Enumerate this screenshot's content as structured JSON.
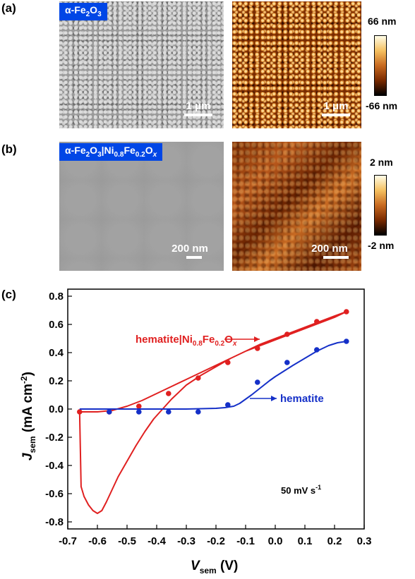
{
  "panels": {
    "a": {
      "letter": "(a)",
      "tag": {
        "base": "α-Fe",
        "sub1": "2",
        "mid": "O",
        "sub2": "3"
      },
      "sem_scale": "1 μm",
      "afm_scale": "1 μm",
      "colorbar": {
        "max": "66 nm",
        "min": "-66 nm"
      }
    },
    "b": {
      "letter": "(b)",
      "tag": {
        "p1": "α-Fe",
        "s1": "2",
        "p2": "O",
        "s2": "3",
        "p3": "|Ni",
        "s3": "0.8",
        "p4": "Fe",
        "s4": "0.2",
        "p5": "O",
        "s5": "x"
      },
      "sem_scale": "200 nm",
      "afm_scale": "200 nm",
      "colorbar": {
        "max": "2 nm",
        "min": "-2 nm"
      }
    },
    "c": {
      "letter": "(c)"
    }
  },
  "chart_data": {
    "type": "line",
    "xlabel": {
      "main": "V",
      "sub": "sem",
      "unit": " (V)"
    },
    "ylabel": {
      "main": "J",
      "sub": "sem",
      "unit": " (mA cm",
      "sup": "-2",
      "close": ")"
    },
    "xlim": [
      -0.7,
      0.3
    ],
    "ylim": [
      -0.85,
      0.85
    ],
    "xticks": [
      "-0.7",
      "-0.6",
      "-0.5",
      "-0.4",
      "-0.3",
      "-0.2",
      "-0.1",
      "0.0",
      "0.1",
      "0.2",
      "0.3"
    ],
    "yticks": [
      "-0.8",
      "-0.6",
      "-0.4",
      "-0.2",
      "0.0",
      "0.2",
      "0.4",
      "0.6",
      "0.8"
    ],
    "annotation": {
      "text": "50 mV s",
      "sup": "-1"
    },
    "series": [
      {
        "name": "hematite|Ni0.8Fe0.2Ox",
        "label": {
          "p1": "hematite|Ni",
          "s1": "0.8",
          "p2": "Fe",
          "s2": "0.2",
          "p3": "O",
          "s3": "x"
        },
        "color": "#e02020",
        "curve_x": [
          -0.66,
          -0.655,
          -0.645,
          -0.63,
          -0.615,
          -0.6,
          -0.585,
          -0.57,
          -0.55,
          -0.53,
          -0.5,
          -0.47,
          -0.44,
          -0.41,
          -0.38,
          -0.35,
          -0.3,
          -0.25,
          -0.2,
          -0.15,
          -0.1,
          -0.05,
          0.0,
          0.05,
          0.1,
          0.15,
          0.2,
          0.24,
          0.2,
          0.15,
          0.1,
          0.05,
          0.0,
          -0.05,
          -0.1,
          -0.15,
          -0.2,
          -0.25,
          -0.3,
          -0.35,
          -0.4,
          -0.45,
          -0.5,
          -0.55,
          -0.6,
          -0.63,
          -0.65,
          -0.66
        ],
        "curve_y": [
          -0.02,
          -0.55,
          -0.62,
          -0.68,
          -0.72,
          -0.74,
          -0.72,
          -0.66,
          -0.57,
          -0.48,
          -0.37,
          -0.26,
          -0.16,
          -0.07,
          0.0,
          0.07,
          0.17,
          0.24,
          0.3,
          0.36,
          0.41,
          0.46,
          0.5,
          0.54,
          0.58,
          0.62,
          0.66,
          0.69,
          0.65,
          0.61,
          0.57,
          0.53,
          0.49,
          0.45,
          0.41,
          0.36,
          0.31,
          0.26,
          0.21,
          0.16,
          0.11,
          0.06,
          0.02,
          -0.01,
          -0.02,
          -0.02,
          -0.02,
          -0.02
        ],
        "points_x": [
          -0.66,
          -0.56,
          -0.46,
          -0.36,
          -0.26,
          -0.16,
          -0.06,
          0.04,
          0.14,
          0.24
        ],
        "points_y": [
          -0.02,
          -0.02,
          0.02,
          0.11,
          0.22,
          0.33,
          0.43,
          0.53,
          0.62,
          0.69
        ]
      },
      {
        "name": "hematite",
        "label": {
          "p1": "hematite"
        },
        "color": "#1530c8",
        "curve_x": [
          -0.66,
          -0.5,
          -0.4,
          -0.3,
          -0.2,
          -0.17,
          -0.14,
          -0.12,
          -0.1,
          -0.08,
          -0.05,
          -0.02,
          0.0,
          0.03,
          0.06,
          0.1,
          0.14,
          0.18,
          0.21,
          0.24
        ],
        "curve_y": [
          0.0,
          0.0,
          0.0,
          0.0,
          0.005,
          0.01,
          0.02,
          0.04,
          0.07,
          0.1,
          0.15,
          0.2,
          0.23,
          0.27,
          0.31,
          0.36,
          0.41,
          0.45,
          0.47,
          0.48
        ],
        "points_x": [
          -0.56,
          -0.46,
          -0.36,
          -0.26,
          -0.16,
          -0.06,
          0.04,
          0.14,
          0.24
        ],
        "points_y": [
          -0.02,
          -0.02,
          -0.02,
          -0.02,
          0.03,
          0.19,
          0.33,
          0.42,
          0.48
        ]
      }
    ]
  }
}
